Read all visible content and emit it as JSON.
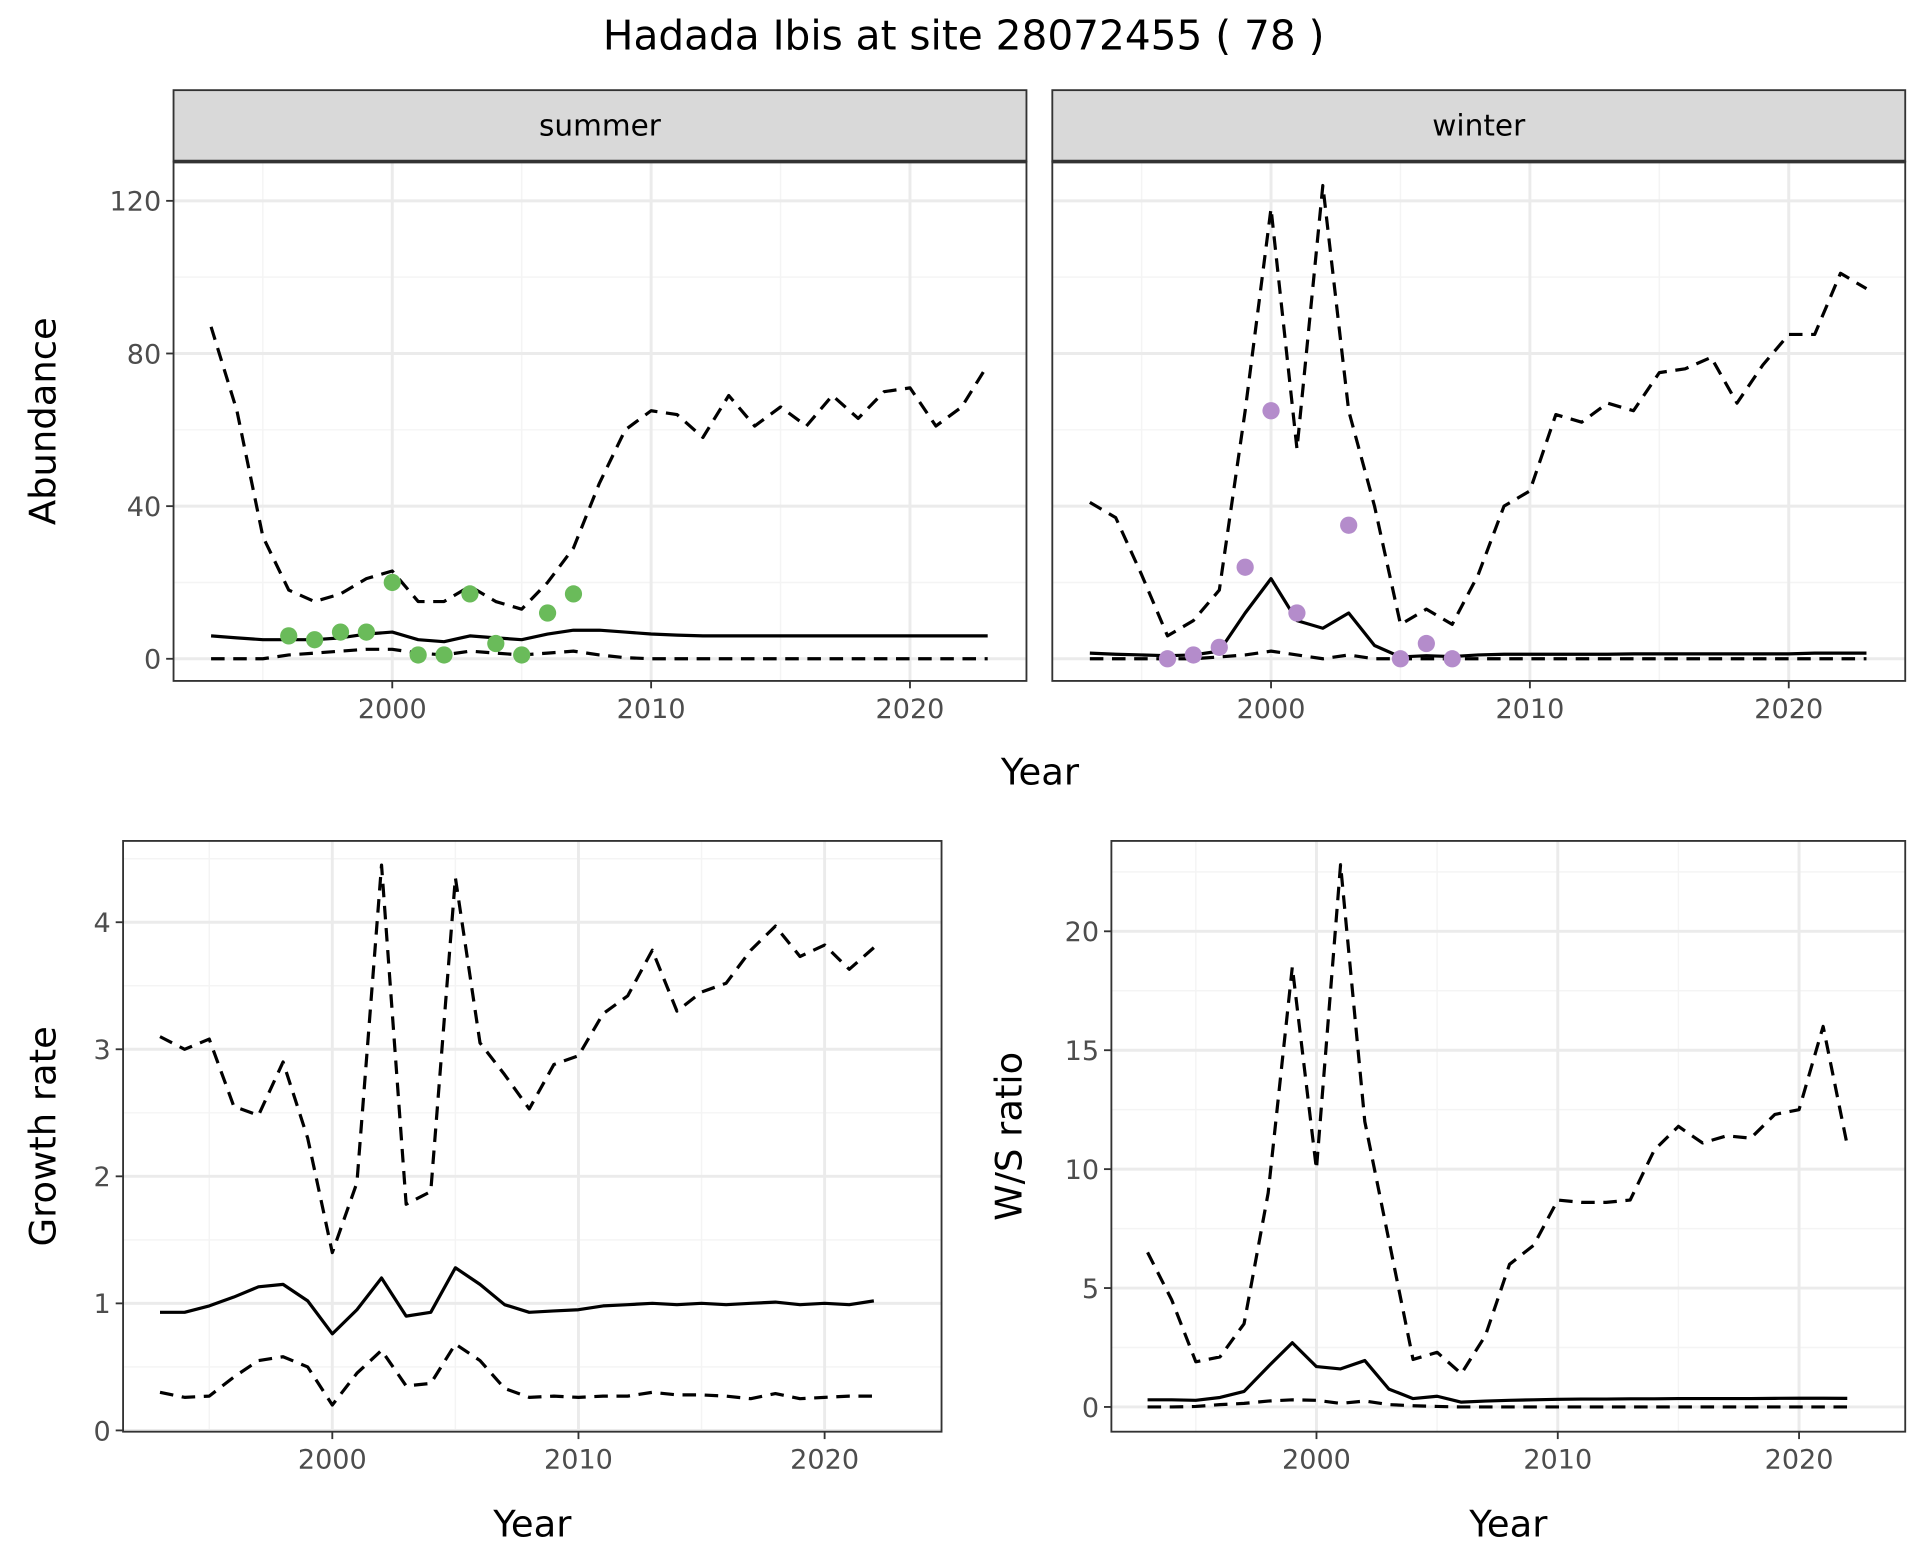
{
  "title": "Hadada Ibis at site 28072455 ( 78 )",
  "colors": {
    "summer_points": "#6abb5a",
    "winter_points": "#b48ccb",
    "strip_fill": "#d9d9d9",
    "grid": "#ebebeb"
  },
  "chart_data": [
    {
      "type": "line",
      "id": "summer",
      "strip": "summer",
      "xlabel": "",
      "ylabel": "Abundance",
      "xlim": [
        1991.55,
        2024.5
      ],
      "ylim": [
        -5.8,
        130.3
      ],
      "xticks": [
        2000,
        2010,
        2020
      ],
      "yticks": [
        0,
        40,
        80,
        120
      ],
      "show_yticks": true,
      "x": [
        1993,
        1994,
        1995,
        1996,
        1997,
        1998,
        1999,
        2000,
        2001,
        2002,
        2003,
        2004,
        2005,
        2006,
        2007,
        2008,
        2009,
        2010,
        2011,
        2012,
        2013,
        2014,
        2015,
        2016,
        2017,
        2018,
        2019,
        2020,
        2021,
        2022,
        2023
      ],
      "series": [
        {
          "name": "upper",
          "style": "dashed",
          "values": [
            87,
            65,
            32,
            18,
            15,
            17,
            21,
            23,
            15,
            15,
            19,
            15,
            13,
            20,
            29,
            46,
            60,
            65,
            64,
            58,
            69,
            61,
            66,
            61,
            69,
            63,
            70,
            71,
            61,
            66,
            77
          ]
        },
        {
          "name": "mean",
          "style": "solid",
          "values": [
            6,
            5.5,
            5,
            5,
            5,
            5.5,
            6.5,
            7,
            5,
            4.5,
            6,
            5.5,
            5,
            6.5,
            7.5,
            7.5,
            7,
            6.5,
            6.2,
            6,
            6,
            6,
            6,
            6,
            6,
            6,
            6,
            6,
            6,
            6,
            6
          ]
        },
        {
          "name": "lower",
          "style": "dashed",
          "values": [
            0,
            0,
            0,
            1,
            1.5,
            2,
            2.5,
            2.5,
            1.5,
            1,
            2,
            1.5,
            1,
            1.5,
            2,
            1,
            0.3,
            0,
            0,
            0,
            0,
            0,
            0,
            0,
            0,
            0,
            0,
            0,
            0,
            0,
            0
          ]
        }
      ],
      "points": {
        "color": "#6abb5a",
        "x": [
          1996,
          1997,
          1998,
          1999,
          2000,
          2001,
          2002,
          2003,
          2004,
          2005,
          2006,
          2007
        ],
        "y": [
          6,
          5,
          7,
          7,
          20,
          1,
          1,
          17,
          4,
          1,
          12,
          17
        ]
      }
    },
    {
      "type": "line",
      "id": "winter",
      "strip": "winter",
      "xlabel": "",
      "ylabel": "",
      "xlim": [
        1991.55,
        2024.5
      ],
      "ylim": [
        -5.8,
        130.3
      ],
      "xticks": [
        2000,
        2010,
        2020
      ],
      "yticks": [
        0,
        40,
        80,
        120
      ],
      "show_yticks": false,
      "x": [
        1993,
        1994,
        1995,
        1996,
        1997,
        1998,
        1999,
        2000,
        2001,
        2002,
        2003,
        2004,
        2005,
        2006,
        2007,
        2008,
        2009,
        2010,
        2011,
        2012,
        2013,
        2014,
        2015,
        2016,
        2017,
        2018,
        2019,
        2020,
        2021,
        2022,
        2023
      ],
      "series": [
        {
          "name": "upper",
          "style": "dashed",
          "values": [
            41,
            37,
            22,
            6,
            10,
            18,
            65,
            118,
            55,
            124,
            65,
            40,
            9,
            13,
            9,
            22,
            40,
            44,
            64,
            62,
            67,
            65,
            75,
            76,
            79,
            67,
            77,
            85,
            85,
            101,
            97
          ]
        },
        {
          "name": "mean",
          "style": "solid",
          "values": [
            1.5,
            1.2,
            1,
            0.8,
            1,
            2,
            12,
            21,
            10,
            8,
            12,
            3.5,
            0.5,
            0.8,
            0.6,
            1,
            1.2,
            1.2,
            1.2,
            1.2,
            1.2,
            1.3,
            1.3,
            1.3,
            1.3,
            1.3,
            1.3,
            1.3,
            1.5,
            1.5,
            1.5
          ]
        },
        {
          "name": "lower",
          "style": "dashed",
          "values": [
            0,
            0,
            0,
            0,
            0,
            0.5,
            1,
            2,
            1,
            0,
            1,
            0,
            0,
            0,
            0,
            0,
            0,
            0,
            0,
            0,
            0,
            0,
            0,
            0,
            0,
            0,
            0,
            0,
            0,
            0,
            0
          ]
        }
      ],
      "points": {
        "color": "#b48ccb",
        "x": [
          1996,
          1997,
          1998,
          1999,
          2000,
          2001,
          2003,
          2005,
          2006,
          2007
        ],
        "y": [
          0,
          1,
          3,
          24,
          65,
          12,
          35,
          0,
          4,
          0
        ]
      }
    },
    {
      "type": "line",
      "id": "growth",
      "xlabel": "Year",
      "ylabel": "Growth rate",
      "xlim": [
        1991.5,
        2024.75
      ],
      "ylim": [
        -0.01,
        4.64
      ],
      "xticks": [
        2000,
        2010,
        2020
      ],
      "yticks": [
        0,
        1,
        2,
        3,
        4
      ],
      "show_yticks": true,
      "x": [
        1993,
        1994,
        1995,
        1996,
        1997,
        1998,
        1999,
        2000,
        2001,
        2002,
        2003,
        2004,
        2005,
        2006,
        2007,
        2008,
        2009,
        2010,
        2011,
        2012,
        2013,
        2014,
        2015,
        2016,
        2017,
        2018,
        2019,
        2020,
        2021,
        2022
      ],
      "series": [
        {
          "name": "upper",
          "style": "dashed",
          "values": [
            3.1,
            3.0,
            3.08,
            2.55,
            2.48,
            2.9,
            2.3,
            1.4,
            1.95,
            4.45,
            1.78,
            1.88,
            4.35,
            3.05,
            2.8,
            2.53,
            2.88,
            2.95,
            3.28,
            3.42,
            3.78,
            3.3,
            3.45,
            3.52,
            3.78,
            3.97,
            3.73,
            3.82,
            3.63,
            3.8
          ]
        },
        {
          "name": "mean",
          "style": "solid",
          "values": [
            0.93,
            0.93,
            0.98,
            1.05,
            1.13,
            1.15,
            1.02,
            0.76,
            0.95,
            1.2,
            0.9,
            0.93,
            1.28,
            1.15,
            0.99,
            0.93,
            0.94,
            0.95,
            0.98,
            0.99,
            1.0,
            0.99,
            1.0,
            0.99,
            1.0,
            1.01,
            0.99,
            1.0,
            0.99,
            1.02
          ]
        },
        {
          "name": "lower",
          "style": "dashed",
          "values": [
            0.3,
            0.26,
            0.27,
            0.42,
            0.55,
            0.58,
            0.5,
            0.2,
            0.45,
            0.63,
            0.35,
            0.37,
            0.68,
            0.55,
            0.33,
            0.26,
            0.27,
            0.26,
            0.27,
            0.27,
            0.3,
            0.28,
            0.28,
            0.27,
            0.25,
            0.29,
            0.25,
            0.26,
            0.27,
            0.27
          ]
        }
      ]
    },
    {
      "type": "line",
      "id": "ratio",
      "xlabel": "Year",
      "ylabel": "W/S ratio",
      "xlim": [
        1991.5,
        2024.4
      ],
      "ylim": [
        -1.04,
        23.8
      ],
      "xticks": [
        2000,
        2010,
        2020
      ],
      "yticks": [
        0,
        5,
        10,
        15,
        20
      ],
      "show_yticks": true,
      "x": [
        1993,
        1994,
        1995,
        1996,
        1997,
        1998,
        1999,
        2000,
        2001,
        2002,
        2003,
        2004,
        2005,
        2006,
        2007,
        2008,
        2009,
        2010,
        2011,
        2012,
        2013,
        2014,
        2015,
        2016,
        2017,
        2018,
        2019,
        2020,
        2021,
        2022
      ],
      "series": [
        {
          "name": "upper",
          "style": "dashed",
          "values": [
            6.5,
            4.5,
            1.9,
            2.1,
            3.5,
            9,
            18.5,
            10,
            22.8,
            12,
            7,
            2,
            2.3,
            1.4,
            3,
            6,
            6.8,
            8.7,
            8.6,
            8.6,
            8.7,
            10.8,
            11.8,
            11.1,
            11.4,
            11.3,
            12.3,
            12.5,
            16,
            11
          ]
        },
        {
          "name": "mean",
          "style": "solid",
          "values": [
            0.3,
            0.3,
            0.28,
            0.4,
            0.65,
            1.7,
            2.7,
            1.7,
            1.6,
            1.95,
            0.75,
            0.35,
            0.45,
            0.2,
            0.25,
            0.28,
            0.3,
            0.32,
            0.33,
            0.33,
            0.34,
            0.34,
            0.35,
            0.35,
            0.35,
            0.35,
            0.36,
            0.37,
            0.37,
            0.36
          ]
        },
        {
          "name": "lower",
          "style": "dashed",
          "values": [
            0,
            0,
            0.02,
            0.1,
            0.15,
            0.25,
            0.3,
            0.28,
            0.15,
            0.25,
            0.1,
            0.05,
            0.02,
            0,
            0,
            0,
            0,
            0,
            0,
            0,
            0,
            0,
            0,
            0,
            0,
            0,
            0,
            0,
            0,
            0
          ]
        }
      ]
    }
  ],
  "shared": {
    "top_xlabel": "Year"
  }
}
